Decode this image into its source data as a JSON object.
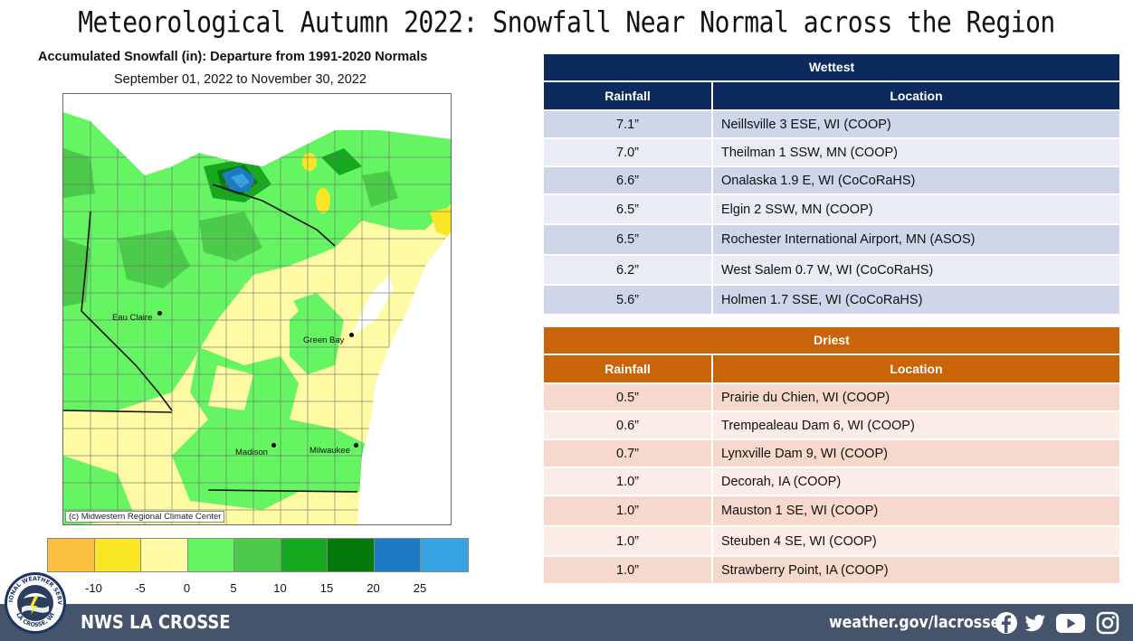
{
  "title": "Meteorological Autumn 2022:  Snowfall Near Normal across the Region",
  "map": {
    "heading": "Accumulated Snowfall (in): Departure from 1991-2020 Normals",
    "subheading": "September 01, 2022 to November 30, 2022",
    "credit": "(c) Midwestern Regional Climate Center",
    "cities": [
      "Eau Claire",
      "Green Bay",
      "Madison",
      "Milwaukee"
    ]
  },
  "legend": {
    "colors": [
      "#fbbe3e",
      "#fbe626",
      "#fffba5",
      "#66f562",
      "#4ccb4b",
      "#16a81e",
      "#057a0a",
      "#1c7bc2",
      "#38a3e3"
    ],
    "labels": [
      "-10",
      "-5",
      "0",
      "5",
      "10",
      "15",
      "20",
      "25"
    ]
  },
  "wettest": {
    "title": "Wettest",
    "col1": "Rainfall",
    "col2": "Location",
    "rows": [
      {
        "amount": "7.1”",
        "location": "Neillsville  3 ESE, WI (COOP)"
      },
      {
        "amount": "7.0”",
        "location": "Theilman 1 SSW, MN (COOP)"
      },
      {
        "amount": "6.6”",
        "location": "Onalaska 1.9 E, WI (CoCoRaHS)"
      },
      {
        "amount": "6.5”",
        "location": "Elgin  2 SSW, MN (COOP)"
      },
      {
        "amount": "6.5”",
        "location": "Rochester International  Airport, MN (ASOS)"
      },
      {
        "amount": "6.2”",
        "location": "West Salem 0.7 W, WI  (CoCoRaHS)"
      },
      {
        "amount": "5.6”",
        "location": "Holmen  1.7 SSE, WI (CoCoRaHS)"
      }
    ]
  },
  "driest": {
    "title": "Driest",
    "col1": "Rainfall",
    "col2": "Location",
    "rows": [
      {
        "amount": "0.5”",
        "location": "Prairie  du  Chien,  WI (COOP)"
      },
      {
        "amount": "0.6”",
        "location": "Trempealeau Dam 6, WI  (COOP)"
      },
      {
        "amount": "0.7”",
        "location": "Lynxville  Dam 9, WI  (COOP)"
      },
      {
        "amount": "1.0”",
        "location": "Decorah, IA  (COOP)"
      },
      {
        "amount": "1.0”",
        "location": "Mauston 1 SE, WI (COOP)"
      },
      {
        "amount": "1.0”",
        "location": "Steuben  4 SE, WI  (COOP)"
      },
      {
        "amount": "1.0”",
        "location": "Strawberry  Point, IA (COOP)"
      }
    ]
  },
  "footer": {
    "office": "NWS LA CROSSE",
    "website": "weather.gov/lacrosse",
    "logo_text_top": "NATIONAL WEATHER SERVICE",
    "logo_text_bottom": "LA CROSSE, WI",
    "social": [
      "facebook-icon",
      "twitter-icon",
      "youtube-icon",
      "instagram-icon"
    ]
  }
}
